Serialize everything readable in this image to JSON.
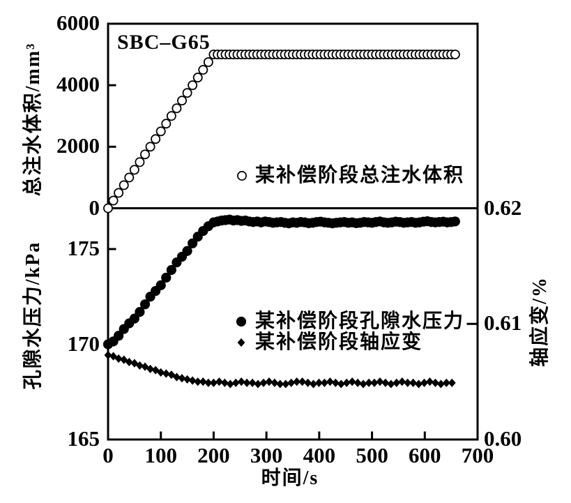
{
  "figure": {
    "title": "SBC–G65",
    "background": "#ffffff",
    "ink": "#000000"
  },
  "chart_data": {
    "type": "scatter",
    "x": {
      "label": "时间/s",
      "lim": [
        0,
        700
      ],
      "ticks": [
        0,
        100,
        200,
        300,
        400,
        500,
        600,
        700
      ]
    },
    "top_panel": {
      "ylabel": "总注水体积/mm³",
      "ylim": [
        0,
        6000
      ],
      "yticks": [
        0,
        2000,
        4000,
        6000
      ],
      "legend": "某补偿阶段总注水体积",
      "series": [
        {
          "name": "某补偿阶段总注水体积",
          "marker": "open-circle",
          "points": [
            [
              0,
              0
            ],
            [
              10,
              250
            ],
            [
              20,
              500
            ],
            [
              30,
              750
            ],
            [
              40,
              1000
            ],
            [
              50,
              1250
            ],
            [
              60,
              1500
            ],
            [
              70,
              1750
            ],
            [
              80,
              2000
            ],
            [
              90,
              2250
            ],
            [
              100,
              2500
            ],
            [
              110,
              2750
            ],
            [
              120,
              3000
            ],
            [
              130,
              3250
            ],
            [
              140,
              3500
            ],
            [
              150,
              3750
            ],
            [
              160,
              4000
            ],
            [
              170,
              4250
            ],
            [
              180,
              4500
            ],
            [
              190,
              4750
            ],
            [
              200,
              5000
            ],
            [
              207.5,
              5000
            ],
            [
              215,
              5000
            ],
            [
              222.5,
              5000
            ],
            [
              230,
              5000
            ],
            [
              237.5,
              5000
            ],
            [
              245,
              5000
            ],
            [
              252.5,
              5000
            ],
            [
              260,
              5000
            ],
            [
              267.5,
              5000
            ],
            [
              275,
              5000
            ],
            [
              282.5,
              5000
            ],
            [
              290,
              5000
            ],
            [
              297.5,
              5000
            ],
            [
              305,
              5000
            ],
            [
              312.5,
              5000
            ],
            [
              320,
              5000
            ],
            [
              327.5,
              5000
            ],
            [
              335,
              5000
            ],
            [
              342.5,
              5000
            ],
            [
              350,
              5000
            ],
            [
              357.5,
              5000
            ],
            [
              365,
              5000
            ],
            [
              372.5,
              5000
            ],
            [
              380,
              5000
            ],
            [
              387.5,
              5000
            ],
            [
              395,
              5000
            ],
            [
              402.5,
              5000
            ],
            [
              410,
              5000
            ],
            [
              417.5,
              5000
            ],
            [
              425,
              5000
            ],
            [
              432.5,
              5000
            ],
            [
              440,
              5000
            ],
            [
              447.5,
              5000
            ],
            [
              455,
              5000
            ],
            [
              462.5,
              5000
            ],
            [
              470,
              5000
            ],
            [
              477.5,
              5000
            ],
            [
              485,
              5000
            ],
            [
              492.5,
              5000
            ],
            [
              500,
              5000
            ],
            [
              507.5,
              5000
            ],
            [
              515,
              5000
            ],
            [
              522.5,
              5000
            ],
            [
              530,
              5000
            ],
            [
              537.5,
              5000
            ],
            [
              545,
              5000
            ],
            [
              552.5,
              5000
            ],
            [
              560,
              5000
            ],
            [
              567.5,
              5000
            ],
            [
              575,
              5000
            ],
            [
              582.5,
              5000
            ],
            [
              590,
              5000
            ],
            [
              597.5,
              5000
            ],
            [
              605,
              5000
            ],
            [
              612.5,
              5000
            ],
            [
              620,
              5000
            ],
            [
              627.5,
              5000
            ],
            [
              635,
              5000
            ],
            [
              642.5,
              5000
            ],
            [
              650,
              5000
            ],
            [
              657.5,
              5000
            ]
          ]
        }
      ]
    },
    "bottom_panel": {
      "ylabel_left": "孔隙水压力/kPa",
      "ylim_left": [
        165,
        177.1
      ],
      "yticks_left": [
        165,
        170,
        175
      ],
      "ylabel_right": "轴应变/%",
      "ylim_right": [
        0.6,
        0.62
      ],
      "yticks_right": [
        "0.60",
        "0.61",
        "0.62"
      ],
      "legend_pore": "某补偿阶段孔隙水压力",
      "legend_strain": "某补偿阶段轴应变",
      "series": [
        {
          "name": "某补偿阶段孔隙水压力",
          "axis": "left",
          "marker": "filled-circle",
          "points": [
            [
              0,
              170.0
            ],
            [
              10,
              170.15
            ],
            [
              20,
              170.45
            ],
            [
              30,
              170.8
            ],
            [
              40,
              171.1
            ],
            [
              50,
              171.35
            ],
            [
              60,
              171.7
            ],
            [
              70,
              172.1
            ],
            [
              80,
              172.5
            ],
            [
              90,
              172.8
            ],
            [
              100,
              173.1
            ],
            [
              110,
              173.5
            ],
            [
              120,
              173.9
            ],
            [
              130,
              174.3
            ],
            [
              140,
              174.6
            ],
            [
              150,
              174.9
            ],
            [
              160,
              175.3
            ],
            [
              170,
              175.65
            ],
            [
              180,
              175.95
            ],
            [
              190,
              176.2
            ],
            [
              200,
              176.4
            ],
            [
              207.5,
              176.45
            ],
            [
              215,
              176.5
            ],
            [
              222.5,
              176.52
            ],
            [
              230,
              176.55
            ],
            [
              237.5,
              176.5
            ],
            [
              245,
              176.52
            ],
            [
              252.5,
              176.48
            ],
            [
              260,
              176.5
            ],
            [
              267.5,
              176.45
            ],
            [
              275,
              176.42
            ],
            [
              282.5,
              176.45
            ],
            [
              290,
              176.4
            ],
            [
              297.5,
              176.45
            ],
            [
              305,
              176.42
            ],
            [
              312.5,
              176.38
            ],
            [
              320,
              176.4
            ],
            [
              327.5,
              176.42
            ],
            [
              335,
              176.38
            ],
            [
              342.5,
              176.35
            ],
            [
              350,
              176.4
            ],
            [
              357.5,
              176.38
            ],
            [
              365,
              176.42
            ],
            [
              372.5,
              176.4
            ],
            [
              380,
              176.36
            ],
            [
              387.5,
              176.38
            ],
            [
              395,
              176.42
            ],
            [
              402.5,
              176.44
            ],
            [
              410,
              176.4
            ],
            [
              417.5,
              176.38
            ],
            [
              425,
              176.35
            ],
            [
              432.5,
              176.38
            ],
            [
              440,
              176.4
            ],
            [
              447.5,
              176.42
            ],
            [
              455,
              176.38
            ],
            [
              462.5,
              176.4
            ],
            [
              470,
              176.36
            ],
            [
              477.5,
              176.38
            ],
            [
              485,
              176.42
            ],
            [
              492.5,
              176.4
            ],
            [
              500,
              176.38
            ],
            [
              507.5,
              176.42
            ],
            [
              515,
              176.45
            ],
            [
              522.5,
              176.4
            ],
            [
              530,
              176.38
            ],
            [
              537.5,
              176.4
            ],
            [
              545,
              176.44
            ],
            [
              552.5,
              176.42
            ],
            [
              560,
              176.38
            ],
            [
              567.5,
              176.4
            ],
            [
              575,
              176.42
            ],
            [
              582.5,
              176.38
            ],
            [
              590,
              176.4
            ],
            [
              597.5,
              176.44
            ],
            [
              605,
              176.46
            ],
            [
              612.5,
              176.42
            ],
            [
              620,
              176.4
            ],
            [
              627.5,
              176.42
            ],
            [
              635,
              176.44
            ],
            [
              642.5,
              176.4
            ],
            [
              650,
              176.42
            ],
            [
              657.5,
              176.45
            ]
          ]
        },
        {
          "name": "某补偿阶段轴应变",
          "axis": "right",
          "marker": "filled-diamond",
          "points": [
            [
              0,
              0.6073
            ],
            [
              10,
              0.6072
            ],
            [
              20,
              0.607
            ],
            [
              30,
              0.6069
            ],
            [
              40,
              0.6067
            ],
            [
              50,
              0.6066
            ],
            [
              60,
              0.6064
            ],
            [
              70,
              0.6063
            ],
            [
              80,
              0.6061
            ],
            [
              90,
              0.606
            ],
            [
              100,
              0.6058
            ],
            [
              110,
              0.6057
            ],
            [
              120,
              0.6056
            ],
            [
              130,
              0.6054
            ],
            [
              140,
              0.6053
            ],
            [
              150,
              0.6052
            ],
            [
              160,
              0.6051
            ],
            [
              170,
              0.605
            ],
            [
              180,
              0.605
            ],
            [
              190,
              0.6049
            ],
            [
              200,
              0.6049
            ],
            [
              210.5,
              0.605
            ],
            [
              221,
              0.6049
            ],
            [
              231.5,
              0.6048
            ],
            [
              242,
              0.6049
            ],
            [
              252.5,
              0.605
            ],
            [
              263,
              0.6049
            ],
            [
              273.5,
              0.6049
            ],
            [
              284,
              0.6048
            ],
            [
              294.5,
              0.6049
            ],
            [
              305,
              0.605
            ],
            [
              315.5,
              0.6049
            ],
            [
              326,
              0.6048
            ],
            [
              336.5,
              0.6048
            ],
            [
              347,
              0.6049
            ],
            [
              357.5,
              0.605
            ],
            [
              368,
              0.605
            ],
            [
              378.5,
              0.6049
            ],
            [
              389,
              0.6048
            ],
            [
              399.5,
              0.6049
            ],
            [
              410,
              0.6049
            ],
            [
              420.5,
              0.605
            ],
            [
              431,
              0.6049
            ],
            [
              441.5,
              0.6048
            ],
            [
              452,
              0.6049
            ],
            [
              462.5,
              0.605
            ],
            [
              473,
              0.6049
            ],
            [
              483.5,
              0.6048
            ],
            [
              494,
              0.6049
            ],
            [
              504.5,
              0.6049
            ],
            [
              515,
              0.605
            ],
            [
              525.5,
              0.6049
            ],
            [
              536,
              0.6048
            ],
            [
              546.5,
              0.6049
            ],
            [
              557,
              0.605
            ],
            [
              567.5,
              0.6049
            ],
            [
              578,
              0.6049
            ],
            [
              588.5,
              0.6048
            ],
            [
              599,
              0.6049
            ],
            [
              609.5,
              0.605
            ],
            [
              620,
              0.6049
            ],
            [
              630.5,
              0.6048
            ],
            [
              641,
              0.6049
            ],
            [
              651.5,
              0.6049
            ]
          ]
        }
      ]
    }
  }
}
